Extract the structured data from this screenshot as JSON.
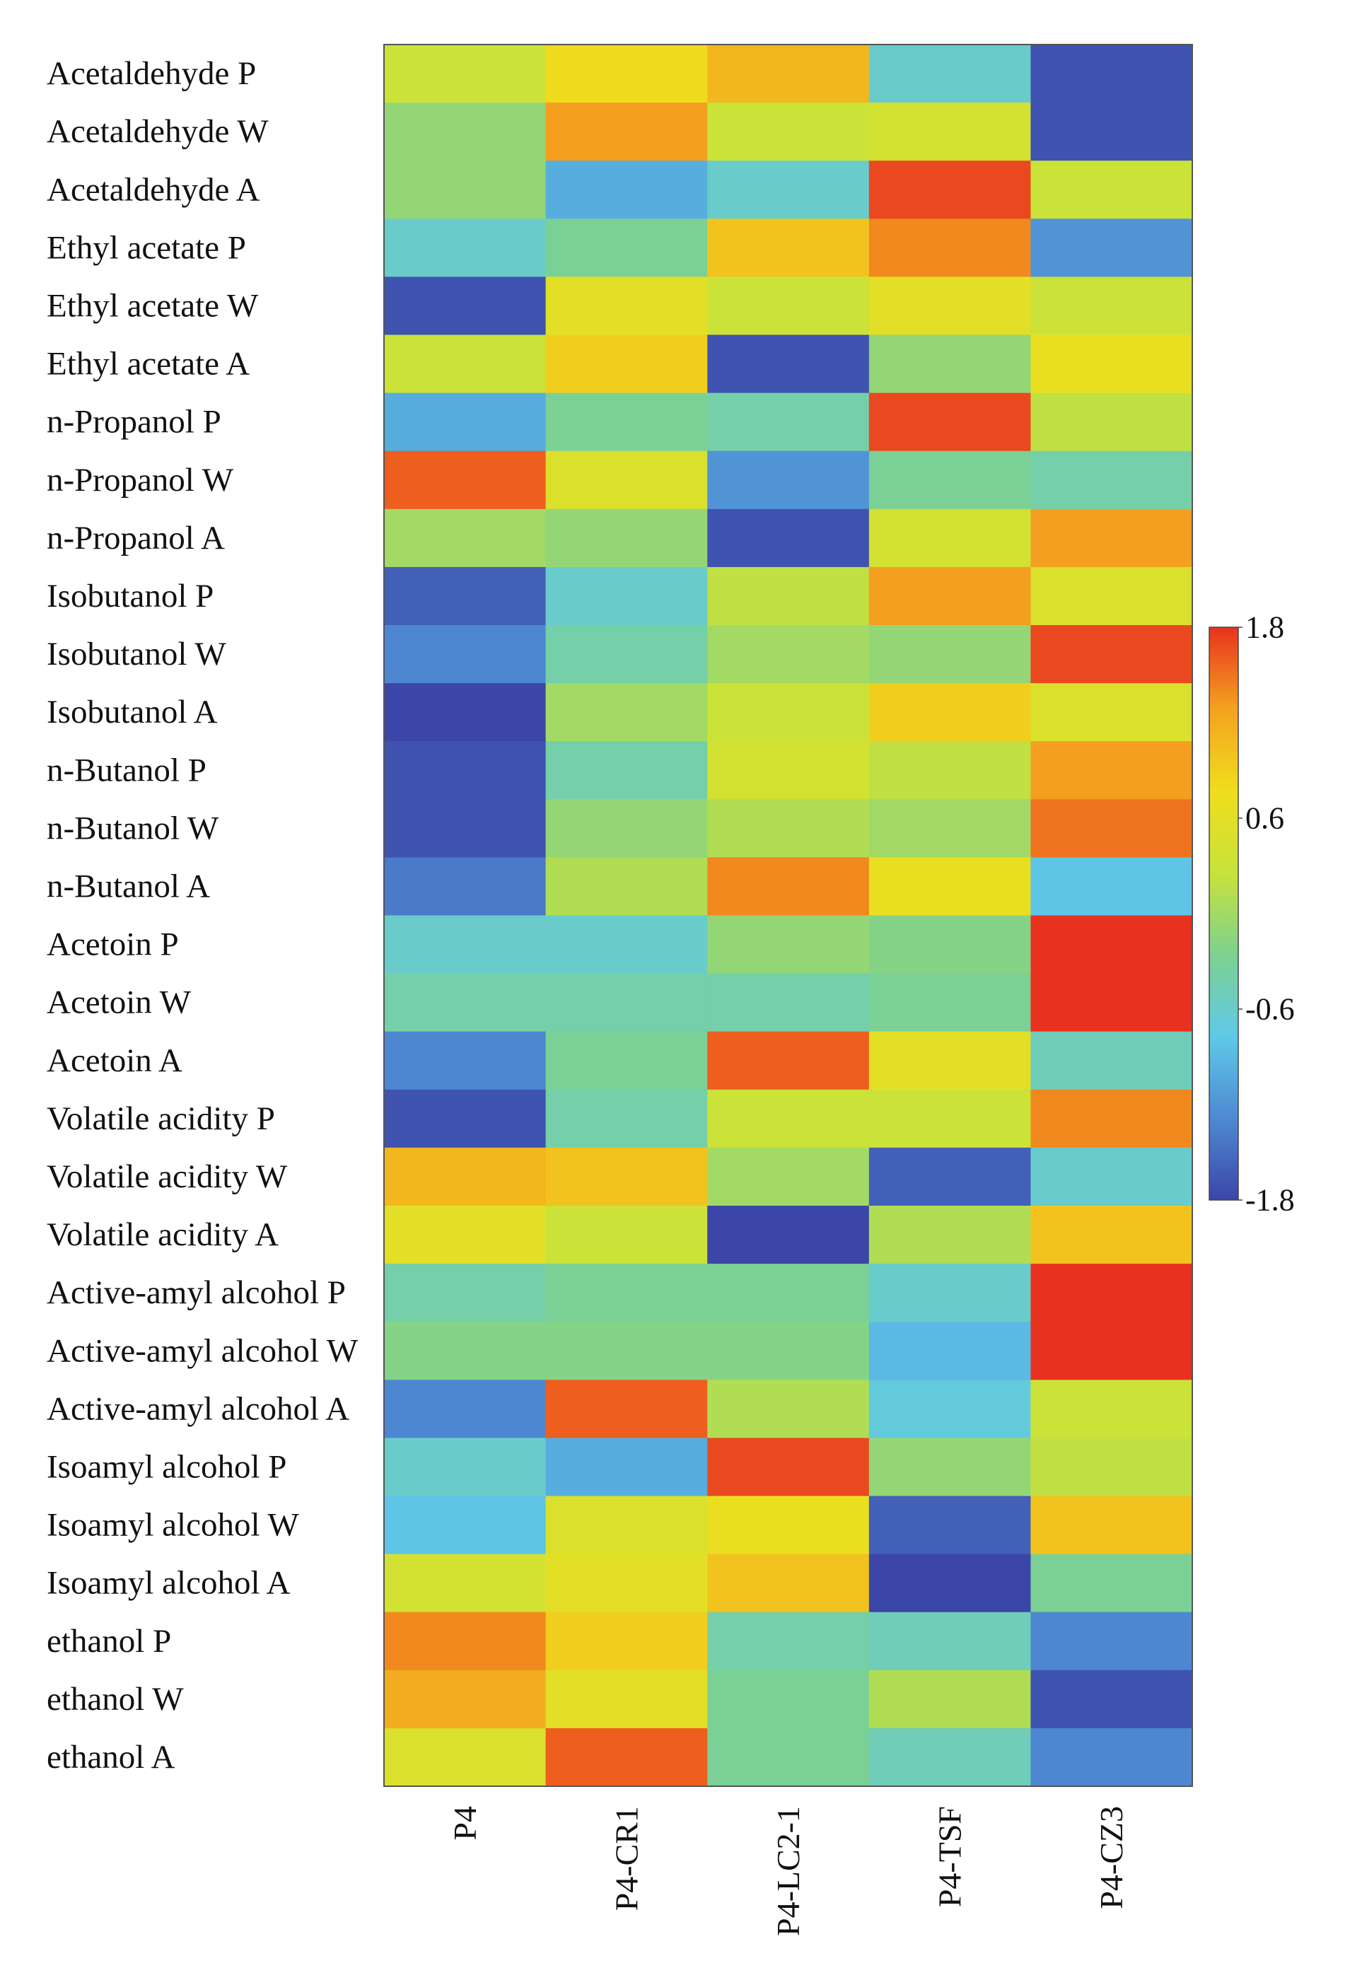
{
  "chart_data": {
    "type": "heatmap",
    "title": "",
    "xlabel": "",
    "ylabel": "",
    "columns": [
      "P4",
      "P4-CR1",
      "P4-LC2-1",
      "P4-TSF",
      "P4-CZ3"
    ],
    "rows": [
      "Acetaldehyde P",
      "Acetaldehyde W",
      "Acetaldehyde A",
      "Ethyl acetate P",
      "Ethyl acetate W",
      "Ethyl acetate A",
      "n-Propanol P",
      "n-Propanol W",
      "n-Propanol A",
      "Isobutanol P",
      "Isobutanol W",
      "Isobutanol A",
      "n-Butanol P",
      "n-Butanol W",
      "n-Butanol A",
      "Acetoin P",
      "Acetoin W",
      "Acetoin A",
      "Volatile acidity P",
      "Volatile acidity W",
      "Volatile acidity A",
      "Active-amyl alcohol P",
      "Active-amyl alcohol W",
      "Active-amyl alcohol A",
      "Isoamyl alcohol P",
      "Isoamyl alcohol W",
      "Isoamyl alcohol A",
      "ethanol P",
      "ethanol W",
      "ethanol A"
    ],
    "values": [
      [
        0.3,
        0.8,
        1.1,
        -0.6,
        -1.7
      ],
      [
        -0.1,
        1.3,
        0.3,
        0.4,
        -1.7
      ],
      [
        -0.1,
        -1.0,
        -0.6,
        1.7,
        0.3
      ],
      [
        -0.6,
        -0.3,
        1.0,
        1.4,
        -1.2
      ],
      [
        -1.7,
        0.6,
        0.3,
        0.6,
        0.3
      ],
      [
        0.3,
        0.9,
        -1.7,
        -0.1,
        0.7
      ],
      [
        -1.0,
        -0.3,
        -0.4,
        1.7,
        0.2
      ],
      [
        1.6,
        0.5,
        -1.2,
        -0.3,
        -0.4
      ],
      [
        0.0,
        -0.1,
        -1.7,
        0.4,
        1.3
      ],
      [
        -1.6,
        -0.6,
        0.2,
        1.3,
        0.5
      ],
      [
        -1.3,
        -0.4,
        0.0,
        -0.1,
        1.7
      ],
      [
        -1.8,
        0.0,
        0.3,
        0.9,
        0.5
      ],
      [
        -1.7,
        -0.4,
        0.4,
        0.2,
        1.3
      ],
      [
        -1.7,
        -0.1,
        0.1,
        0.0,
        1.5
      ],
      [
        -1.4,
        0.1,
        1.4,
        0.7,
        -0.8
      ],
      [
        -0.6,
        -0.6,
        -0.1,
        -0.2,
        1.8
      ],
      [
        -0.4,
        -0.4,
        -0.4,
        -0.3,
        1.8
      ],
      [
        -1.3,
        -0.3,
        1.6,
        0.6,
        -0.5
      ],
      [
        -1.7,
        -0.4,
        0.3,
        0.3,
        1.4
      ],
      [
        1.1,
        1.0,
        0.0,
        -1.6,
        -0.6
      ],
      [
        0.6,
        0.3,
        -1.8,
        0.1,
        1.0
      ],
      [
        -0.4,
        -0.3,
        -0.3,
        -0.6,
        1.8
      ],
      [
        -0.2,
        -0.2,
        -0.2,
        -0.9,
        1.8
      ],
      [
        -1.3,
        1.6,
        0.1,
        -0.7,
        0.3
      ],
      [
        -0.6,
        -1.0,
        1.7,
        -0.1,
        0.2
      ],
      [
        -0.8,
        0.5,
        0.7,
        -1.6,
        1.0
      ],
      [
        0.4,
        0.6,
        1.0,
        -1.8,
        -0.3
      ],
      [
        1.4,
        0.9,
        -0.4,
        -0.5,
        -1.3
      ],
      [
        1.2,
        0.6,
        -0.3,
        0.1,
        -1.7
      ],
      [
        0.5,
        1.6,
        -0.3,
        -0.5,
        -1.3
      ]
    ],
    "colorbar": {
      "min": -1.8,
      "max": 1.8,
      "ticks": [
        "1.8",
        "0.6",
        "-0.6",
        "-1.8"
      ],
      "stops": [
        "#3b46a8",
        "#4e89d2",
        "#5fc9e8",
        "#7dd18f",
        "#c8e23a",
        "#f0dd1d",
        "#f4a21f",
        "#e8321f"
      ]
    }
  }
}
